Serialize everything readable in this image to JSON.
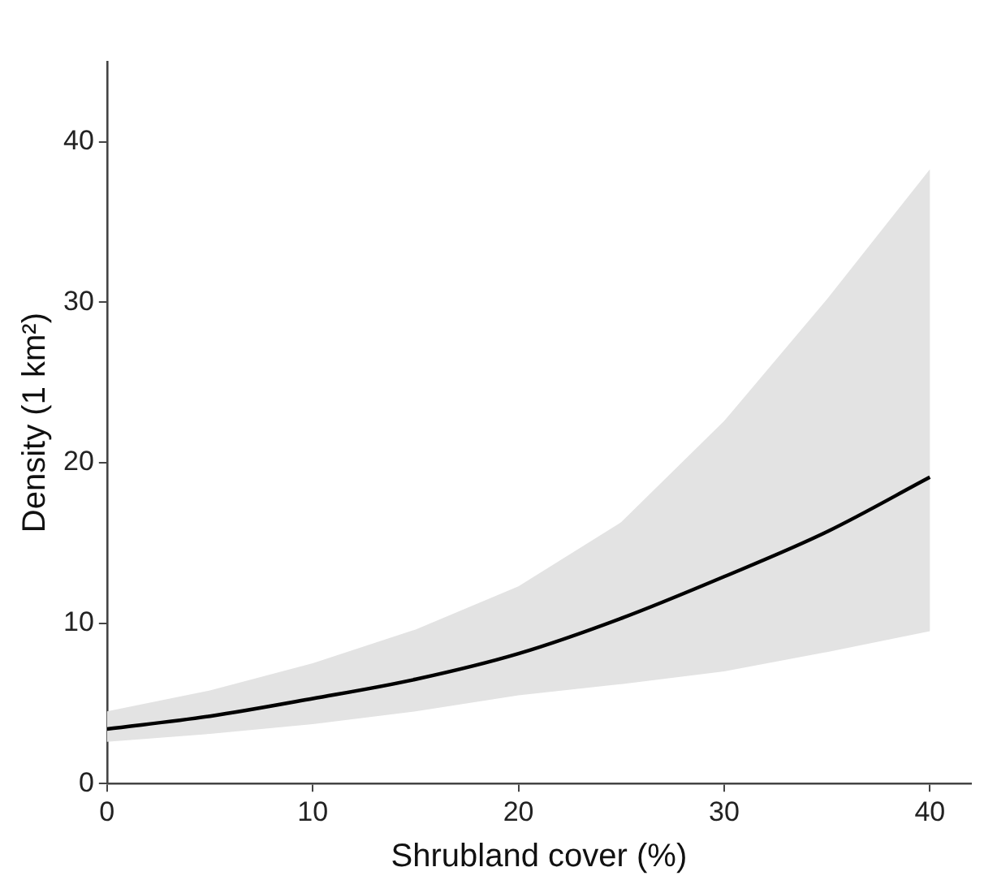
{
  "chart_data": {
    "type": "line",
    "xlabel": "Shrubland cover (%)",
    "ylabel": "Density (1 km²)",
    "x": [
      0,
      5,
      10,
      15,
      20,
      25,
      30,
      35,
      40
    ],
    "series": [
      {
        "color": "#000000",
        "values": [
          3.4,
          4.2,
          5.3,
          6.5,
          8.1,
          10.3,
          12.9,
          15.7,
          19.1
        ],
        "lower": [
          2.6,
          3.1,
          3.7,
          4.5,
          5.5,
          6.2,
          7.0,
          8.2,
          9.5
        ],
        "upper": [
          4.5,
          5.8,
          7.5,
          9.6,
          12.3,
          16.3,
          22.6,
          30.2,
          38.3
        ]
      }
    ],
    "xlim": [
      0,
      42
    ],
    "xticks": [
      0,
      10,
      20,
      30,
      40
    ],
    "ylim": [
      0,
      45
    ],
    "yticks": [
      0,
      10,
      20,
      30,
      40
    ],
    "grid": false,
    "legend": false,
    "marker": "none",
    "line_style": "solid"
  }
}
